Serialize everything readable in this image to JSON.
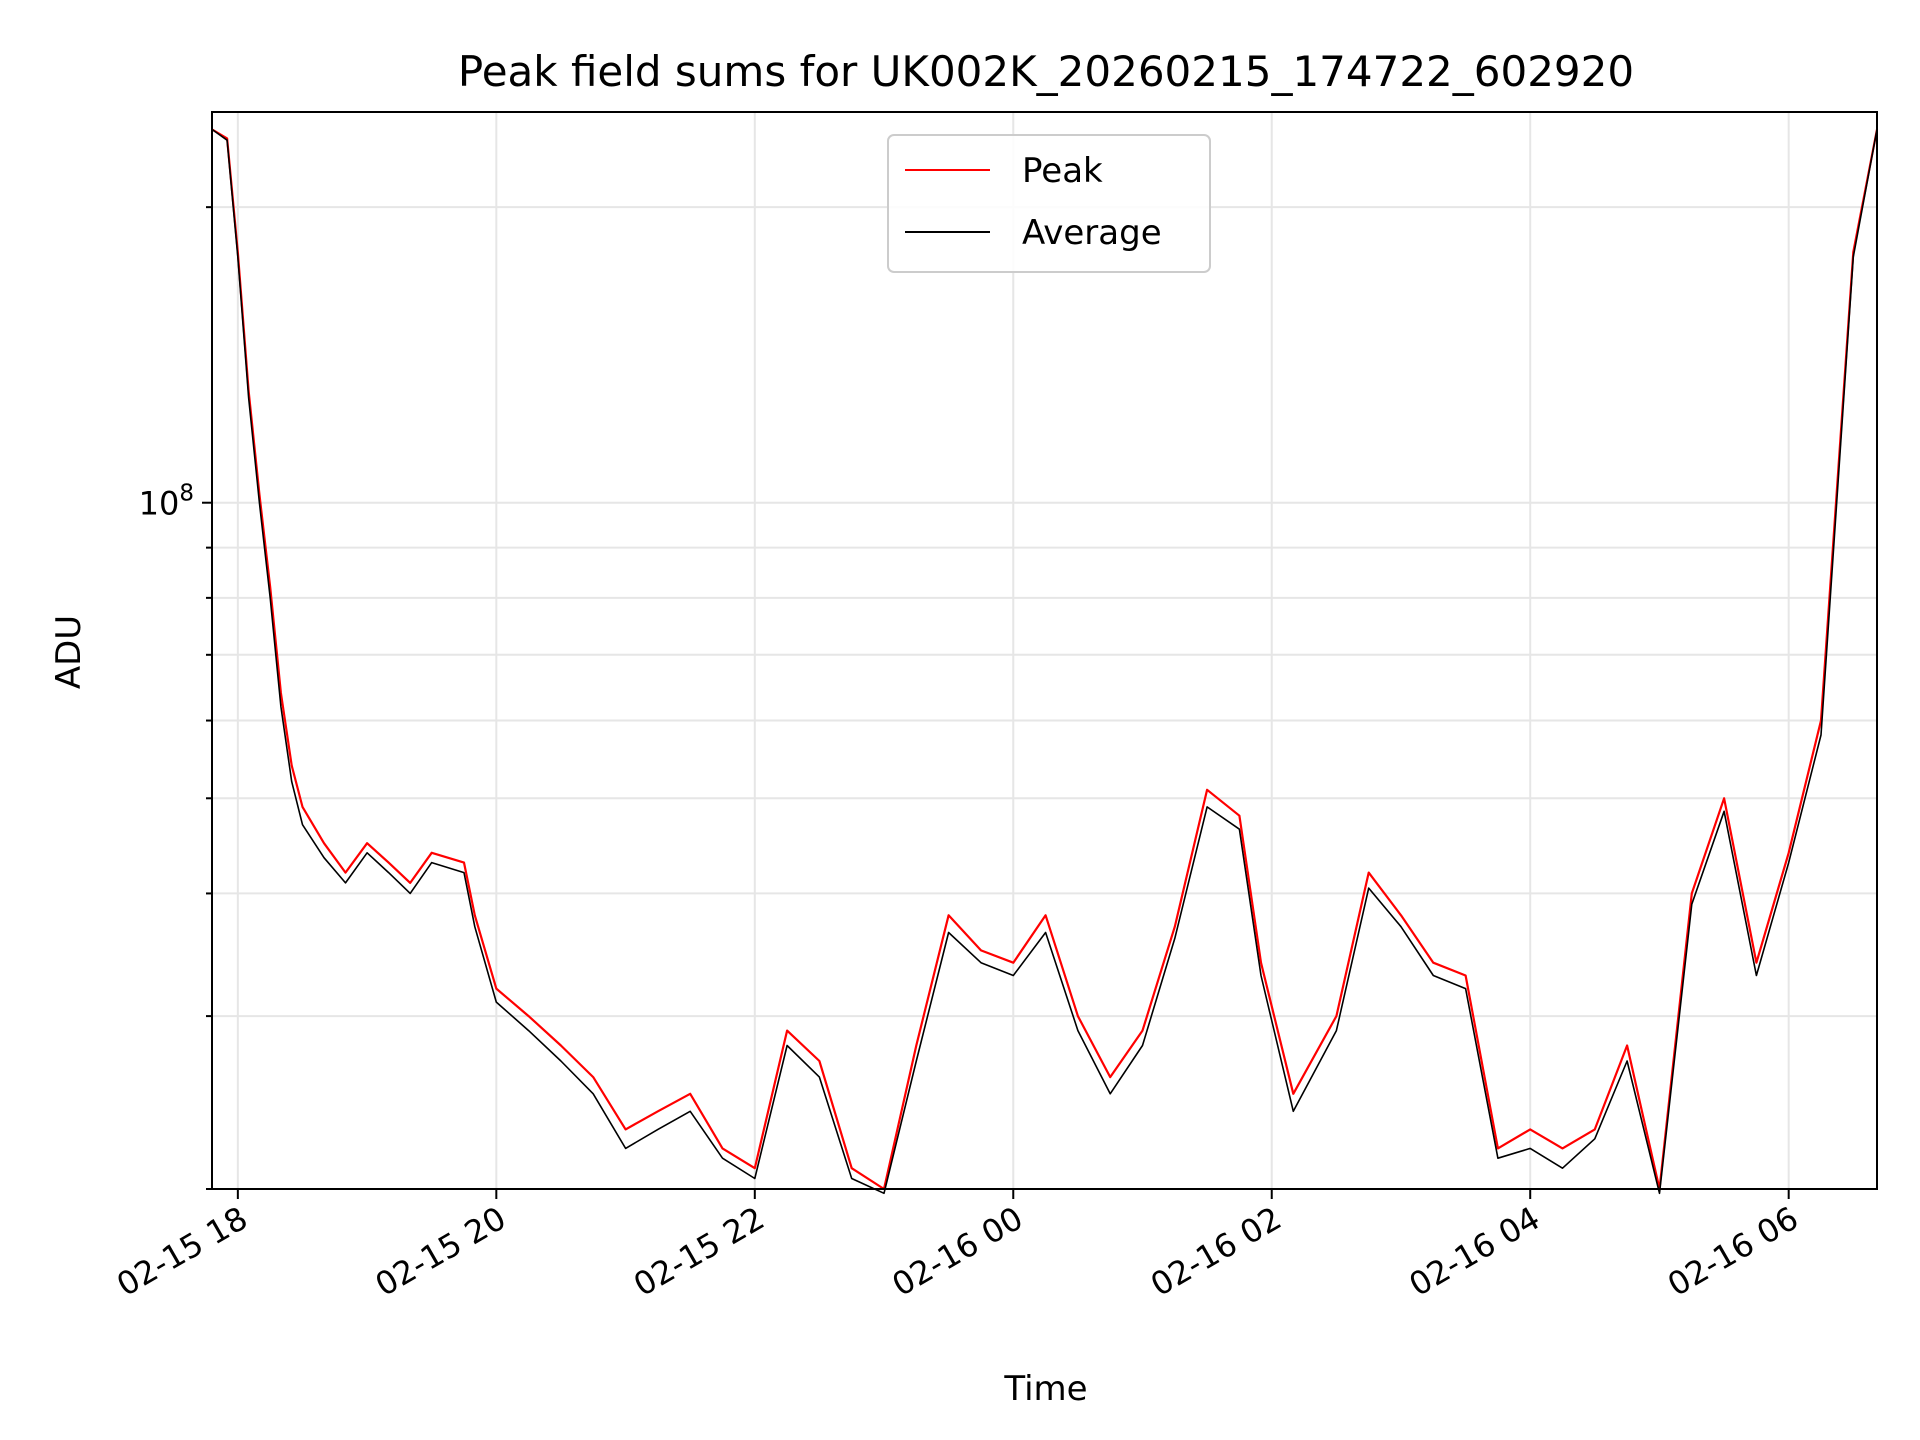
{
  "chart_data": {
    "type": "line",
    "title": "Peak field sums for UK002K_20260215_174722_602920",
    "xlabel": "Time",
    "ylabel": "ADU",
    "y_scale": "log",
    "grid": true,
    "legend_position": "upper-center",
    "xlim": [
      "2026-02-15T17:48",
      "2026-02-16T06:41"
    ],
    "ylim": [
      20000000,
      250000000
    ],
    "x_ticks": [
      {
        "value": "2026-02-15T18:00",
        "label": "02-15 18"
      },
      {
        "value": "2026-02-15T20:00",
        "label": "02-15 20"
      },
      {
        "value": "2026-02-15T22:00",
        "label": "02-15 22"
      },
      {
        "value": "2026-02-16T00:00",
        "label": "02-16 00"
      },
      {
        "value": "2026-02-16T02:00",
        "label": "02-16 02"
      },
      {
        "value": "2026-02-16T04:00",
        "label": "02-16 04"
      },
      {
        "value": "2026-02-16T06:00",
        "label": "02-16 06"
      }
    ],
    "y_major_ticks": [
      {
        "value": 100000000,
        "label_base": "10",
        "label_exp": "8"
      }
    ],
    "series": [
      {
        "name": "Peak",
        "color": "#ff0000",
        "x": [
          "2026-02-15T17:48",
          "2026-02-15T17:55",
          "2026-02-15T18:00",
          "2026-02-15T18:05",
          "2026-02-15T18:10",
          "2026-02-15T18:15",
          "2026-02-15T18:20",
          "2026-02-15T18:25",
          "2026-02-15T18:30",
          "2026-02-15T18:40",
          "2026-02-15T18:50",
          "2026-02-15T19:00",
          "2026-02-15T19:10",
          "2026-02-15T19:20",
          "2026-02-15T19:30",
          "2026-02-15T19:45",
          "2026-02-15T19:50",
          "2026-02-15T20:00",
          "2026-02-15T20:15",
          "2026-02-15T20:30",
          "2026-02-15T20:45",
          "2026-02-15T21:00",
          "2026-02-15T21:15",
          "2026-02-15T21:30",
          "2026-02-15T21:45",
          "2026-02-15T22:00",
          "2026-02-15T22:15",
          "2026-02-15T22:30",
          "2026-02-15T22:45",
          "2026-02-15T23:00",
          "2026-02-15T23:15",
          "2026-02-15T23:30",
          "2026-02-15T23:45",
          "2026-02-16T00:00",
          "2026-02-16T00:15",
          "2026-02-16T00:30",
          "2026-02-16T00:45",
          "2026-02-16T01:00",
          "2026-02-16T01:15",
          "2026-02-16T01:30",
          "2026-02-16T01:45",
          "2026-02-16T01:55",
          "2026-02-16T02:10",
          "2026-02-16T02:30",
          "2026-02-16T02:45",
          "2026-02-16T03:00",
          "2026-02-16T03:15",
          "2026-02-16T03:30",
          "2026-02-16T03:45",
          "2026-02-16T04:00",
          "2026-02-16T04:15",
          "2026-02-16T04:30",
          "2026-02-16T04:45",
          "2026-02-16T05:00",
          "2026-02-16T05:15",
          "2026-02-16T05:30",
          "2026-02-16T05:45",
          "2026-02-16T06:00",
          "2026-02-16T06:15",
          "2026-02-16T06:30",
          "2026-02-16T06:41"
        ],
        "values": [
          240000000,
          235000000,
          180000000,
          130000000,
          102000000,
          82000000,
          64000000,
          54000000,
          49000000,
          45000000,
          42000000,
          45000000,
          43000000,
          41000000,
          44000000,
          43000000,
          38000000,
          32000000,
          30000000,
          28000000,
          26000000,
          23000000,
          24000000,
          25000000,
          22000000,
          21000000,
          29000000,
          27000000,
          21000000,
          20000000,
          28000000,
          38000000,
          35000000,
          34000000,
          38000000,
          30000000,
          26000000,
          29000000,
          37000000,
          51000000,
          48000000,
          34000000,
          25000000,
          30000000,
          42000000,
          38000000,
          34000000,
          33000000,
          22000000,
          23000000,
          22000000,
          23000000,
          28000000,
          20000000,
          40000000,
          50000000,
          34000000,
          44000000,
          60000000,
          180000000,
          240000000
        ]
      },
      {
        "name": "Average",
        "color": "#000000",
        "x": [
          "2026-02-15T17:48",
          "2026-02-15T17:55",
          "2026-02-15T18:00",
          "2026-02-15T18:05",
          "2026-02-15T18:10",
          "2026-02-15T18:15",
          "2026-02-15T18:20",
          "2026-02-15T18:25",
          "2026-02-15T18:30",
          "2026-02-15T18:40",
          "2026-02-15T18:50",
          "2026-02-15T19:00",
          "2026-02-15T19:10",
          "2026-02-15T19:20",
          "2026-02-15T19:30",
          "2026-02-15T19:45",
          "2026-02-15T19:50",
          "2026-02-15T20:00",
          "2026-02-15T20:15",
          "2026-02-15T20:30",
          "2026-02-15T20:45",
          "2026-02-15T21:00",
          "2026-02-15T21:15",
          "2026-02-15T21:30",
          "2026-02-15T21:45",
          "2026-02-15T22:00",
          "2026-02-15T22:15",
          "2026-02-15T22:30",
          "2026-02-15T22:45",
          "2026-02-15T23:00",
          "2026-02-15T23:15",
          "2026-02-15T23:30",
          "2026-02-15T23:45",
          "2026-02-16T00:00",
          "2026-02-16T00:15",
          "2026-02-16T00:30",
          "2026-02-16T00:45",
          "2026-02-16T01:00",
          "2026-02-16T01:15",
          "2026-02-16T01:30",
          "2026-02-16T01:45",
          "2026-02-16T01:55",
          "2026-02-16T02:10",
          "2026-02-16T02:30",
          "2026-02-16T02:45",
          "2026-02-16T03:00",
          "2026-02-16T03:15",
          "2026-02-16T03:30",
          "2026-02-16T03:45",
          "2026-02-16T04:00",
          "2026-02-16T04:15",
          "2026-02-16T04:30",
          "2026-02-16T04:45",
          "2026-02-16T05:00",
          "2026-02-16T05:15",
          "2026-02-16T05:30",
          "2026-02-16T05:45",
          "2026-02-16T06:00",
          "2026-02-16T06:15",
          "2026-02-16T06:30",
          "2026-02-16T06:41"
        ],
        "values": [
          240000000,
          234000000,
          178000000,
          128000000,
          100000000,
          80000000,
          62000000,
          52000000,
          47000000,
          43500000,
          41000000,
          44000000,
          42000000,
          40000000,
          43000000,
          42000000,
          37000000,
          31000000,
          29000000,
          27000000,
          25000000,
          22000000,
          23000000,
          24000000,
          21500000,
          20500000,
          28000000,
          26000000,
          20500000,
          19800000,
          27000000,
          36500000,
          34000000,
          33000000,
          36500000,
          29000000,
          25000000,
          28000000,
          36000000,
          49000000,
          46500000,
          33000000,
          24000000,
          29000000,
          40500000,
          37000000,
          33000000,
          32000000,
          21500000,
          22000000,
          21000000,
          22500000,
          27000000,
          19800000,
          39000000,
          48500000,
          33000000,
          43000000,
          58000000,
          178000000,
          240000000
        ]
      }
    ]
  }
}
